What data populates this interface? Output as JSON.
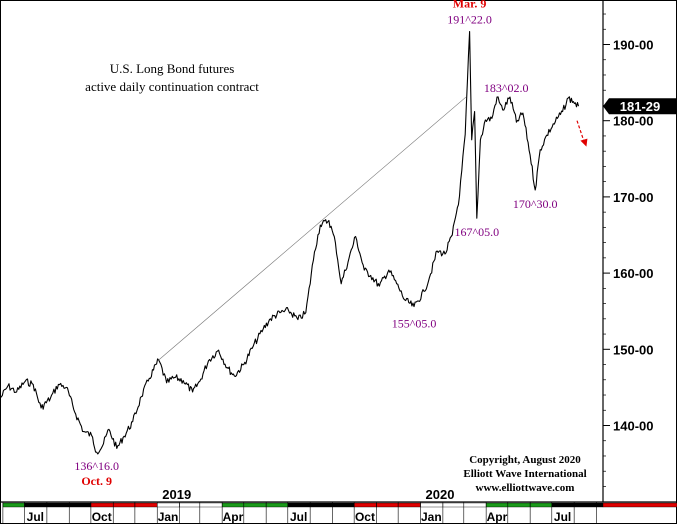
{
  "chart_data": {
    "type": "line",
    "title": "U.S. Long Bond futures",
    "subtitle": "active daily continuation contract",
    "ylim": [
      130,
      197
    ],
    "y_ticks": [
      {
        "value": 140,
        "label": "140-00"
      },
      {
        "value": 150,
        "label": "150-00"
      },
      {
        "value": 160,
        "label": "160-00"
      },
      {
        "value": 170,
        "label": "170-00"
      },
      {
        "value": 180,
        "label": "180-00"
      },
      {
        "value": 190,
        "label": "190-00"
      }
    ],
    "x_ticks": [
      {
        "date": "2018-07",
        "label": "Jul"
      },
      {
        "date": "2018-10",
        "label": "Oct"
      },
      {
        "date": "2019-01",
        "label": "Jan"
      },
      {
        "date": "2019-04",
        "label": "Apr"
      },
      {
        "date": "2019-07",
        "label": "Jul"
      },
      {
        "date": "2019-10",
        "label": "Oct"
      },
      {
        "date": "2020-01",
        "label": "Jan"
      },
      {
        "date": "2020-04",
        "label": "Apr"
      },
      {
        "date": "2020-07",
        "label": "Jul"
      }
    ],
    "year_labels": [
      {
        "date": "2019-01",
        "label": "2019"
      },
      {
        "date": "2020-01",
        "label": "2020"
      }
    ],
    "last_price": {
      "value": 181.9,
      "label": "181-29"
    },
    "series": [
      {
        "values": [
          [
            "2018-05-28",
            143.5
          ],
          [
            "2018-06-08",
            145.2
          ],
          [
            "2018-06-20",
            144.4
          ],
          [
            "2018-07-02",
            145.8
          ],
          [
            "2018-07-13",
            145.4
          ],
          [
            "2018-07-24",
            142.3
          ],
          [
            "2018-08-06",
            143.6
          ],
          [
            "2018-08-17",
            145.4
          ],
          [
            "2018-08-28",
            145.0
          ],
          [
            "2018-09-10",
            141.5
          ],
          [
            "2018-09-21",
            139.2
          ],
          [
            "2018-10-02",
            138.7
          ],
          [
            "2018-10-09",
            136.5
          ],
          [
            "2018-10-17",
            137.3
          ],
          [
            "2018-10-26",
            139.5
          ],
          [
            "2018-11-06",
            137.0
          ],
          [
            "2018-11-16",
            138.6
          ],
          [
            "2018-11-28",
            140.5
          ],
          [
            "2018-12-10",
            143.8
          ],
          [
            "2018-12-21",
            146.2
          ],
          [
            "2019-01-03",
            148.6
          ],
          [
            "2019-01-14",
            145.6
          ],
          [
            "2019-01-25",
            146.3
          ],
          [
            "2019-02-06",
            145.9
          ],
          [
            "2019-02-19",
            144.4
          ],
          [
            "2019-03-01",
            145.8
          ],
          [
            "2019-03-13",
            148.5
          ],
          [
            "2019-03-27",
            149.9
          ],
          [
            "2019-04-08",
            147.6
          ],
          [
            "2019-04-18",
            146.5
          ],
          [
            "2019-05-01",
            148.0
          ],
          [
            "2019-05-14",
            150.4
          ],
          [
            "2019-05-28",
            152.7
          ],
          [
            "2019-06-07",
            154.0
          ],
          [
            "2019-06-20",
            154.8
          ],
          [
            "2019-07-02",
            155.1
          ],
          [
            "2019-07-15",
            153.9
          ],
          [
            "2019-07-26",
            154.8
          ],
          [
            "2019-08-07",
            162.8
          ],
          [
            "2019-08-15",
            166.3
          ],
          [
            "2019-08-27",
            166.9
          ],
          [
            "2019-09-05",
            164.0
          ],
          [
            "2019-09-13",
            158.6
          ],
          [
            "2019-09-24",
            162.0
          ],
          [
            "2019-10-03",
            164.8
          ],
          [
            "2019-10-15",
            160.4
          ],
          [
            "2019-10-24",
            159.7
          ],
          [
            "2019-11-05",
            158.3
          ],
          [
            "2019-11-18",
            160.4
          ],
          [
            "2019-11-29",
            158.6
          ],
          [
            "2019-12-10",
            156.5
          ],
          [
            "2019-12-23",
            155.6
          ],
          [
            "2020-01-06",
            157.6
          ],
          [
            "2020-01-15",
            159.9
          ],
          [
            "2020-01-24",
            162.9
          ],
          [
            "2020-02-04",
            162.5
          ],
          [
            "2020-02-14",
            165.0
          ],
          [
            "2020-02-24",
            170.1
          ],
          [
            "2020-03-03",
            178.2
          ],
          [
            "2020-03-09",
            191.7
          ],
          [
            "2020-03-12",
            177.5
          ],
          [
            "2020-03-16",
            181.2
          ],
          [
            "2020-03-19",
            167.2
          ],
          [
            "2020-03-24",
            177.5
          ],
          [
            "2020-03-31",
            180.1
          ],
          [
            "2020-04-09",
            180.3
          ],
          [
            "2020-04-16",
            183.1
          ],
          [
            "2020-04-24",
            181.4
          ],
          [
            "2020-05-04",
            183.1
          ],
          [
            "2020-05-13",
            179.8
          ],
          [
            "2020-05-22",
            181.0
          ],
          [
            "2020-06-01",
            175.5
          ],
          [
            "2020-06-08",
            170.9
          ],
          [
            "2020-06-15",
            176.2
          ],
          [
            "2020-06-24",
            178.1
          ],
          [
            "2020-07-06",
            179.9
          ],
          [
            "2020-07-16",
            181.2
          ],
          [
            "2020-07-24",
            183.0
          ],
          [
            "2020-07-31",
            182.5
          ],
          [
            "2020-08-07",
            181.9
          ]
        ]
      }
    ],
    "trendline": [
      [
        "2019-01-03",
        148.6
      ],
      [
        "2020-03-04",
        183.1
      ]
    ],
    "annotations": [
      {
        "date": "2018-10-09",
        "value": 136.5,
        "text": "136^16.0",
        "subtext": "Oct. 9",
        "color": "#800080",
        "subcolor": "#e00000",
        "position": "below"
      },
      {
        "date": "2020-03-09",
        "value": 191.7,
        "text": "191^22.0",
        "caption": "Mar. 9",
        "color": "#800080",
        "captioncolor": "#e00000",
        "position": "above"
      },
      {
        "date": "2020-03-26",
        "value": 183.1,
        "text": "183^02.0",
        "color": "#800080",
        "position": "right"
      },
      {
        "date": "2020-03-19",
        "value": 167.2,
        "text": "167^05.0",
        "color": "#800080",
        "position": "below"
      },
      {
        "date": "2019-12-23",
        "value": 155.2,
        "text": "155^05.0",
        "color": "#800080",
        "position": "below"
      },
      {
        "date": "2020-06-08",
        "value": 170.9,
        "text": "170^30.0",
        "color": "#800080",
        "position": "below"
      }
    ],
    "projection_arrow": {
      "from": [
        "2020-08-05",
        180.0
      ],
      "to": [
        "2020-08-18",
        176.6
      ],
      "color": "#e00000"
    },
    "credits": [
      "Copyright, August 2020",
      "Elliott Wave International",
      "www.elliottwave.com"
    ],
    "grid": false
  }
}
